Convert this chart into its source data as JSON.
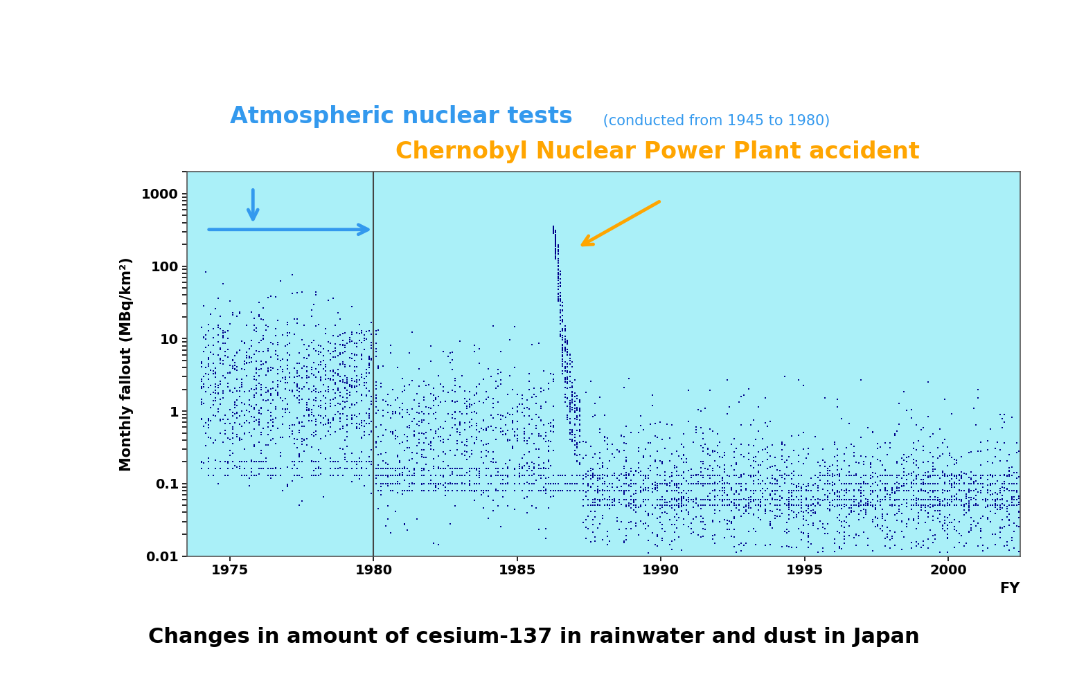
{
  "title": "Changes in amount of cesium-137 in rainwater and dust in Japan",
  "ylabel": "Monthly fallout (MBq/km²)",
  "xlabel": "FY",
  "xlim": [
    1973.5,
    2002.5
  ],
  "ylim_log": [
    0.01,
    2000
  ],
  "yticks": [
    0.01,
    0.1,
    1,
    10,
    100,
    1000
  ],
  "xticks": [
    1975,
    1980,
    1985,
    1990,
    1995,
    2000
  ],
  "vertical_line_x": 1980,
  "bg_color": "#aaf0f8",
  "point_color": "#00008B",
  "nuclear_tests_label": "Atmospheric nuclear tests",
  "nuclear_tests_sub": " (conducted from 1945 to 1980)",
  "nuclear_tests_color": "#3399EE",
  "chernobyl_label": "Chernobyl Nuclear Power Plant accident",
  "chernobyl_color": "#FFA500",
  "arrow_color_blue": "#3399EE",
  "arrow_color_orange": "#FFA500",
  "outer_bg": "#FFFFFF"
}
